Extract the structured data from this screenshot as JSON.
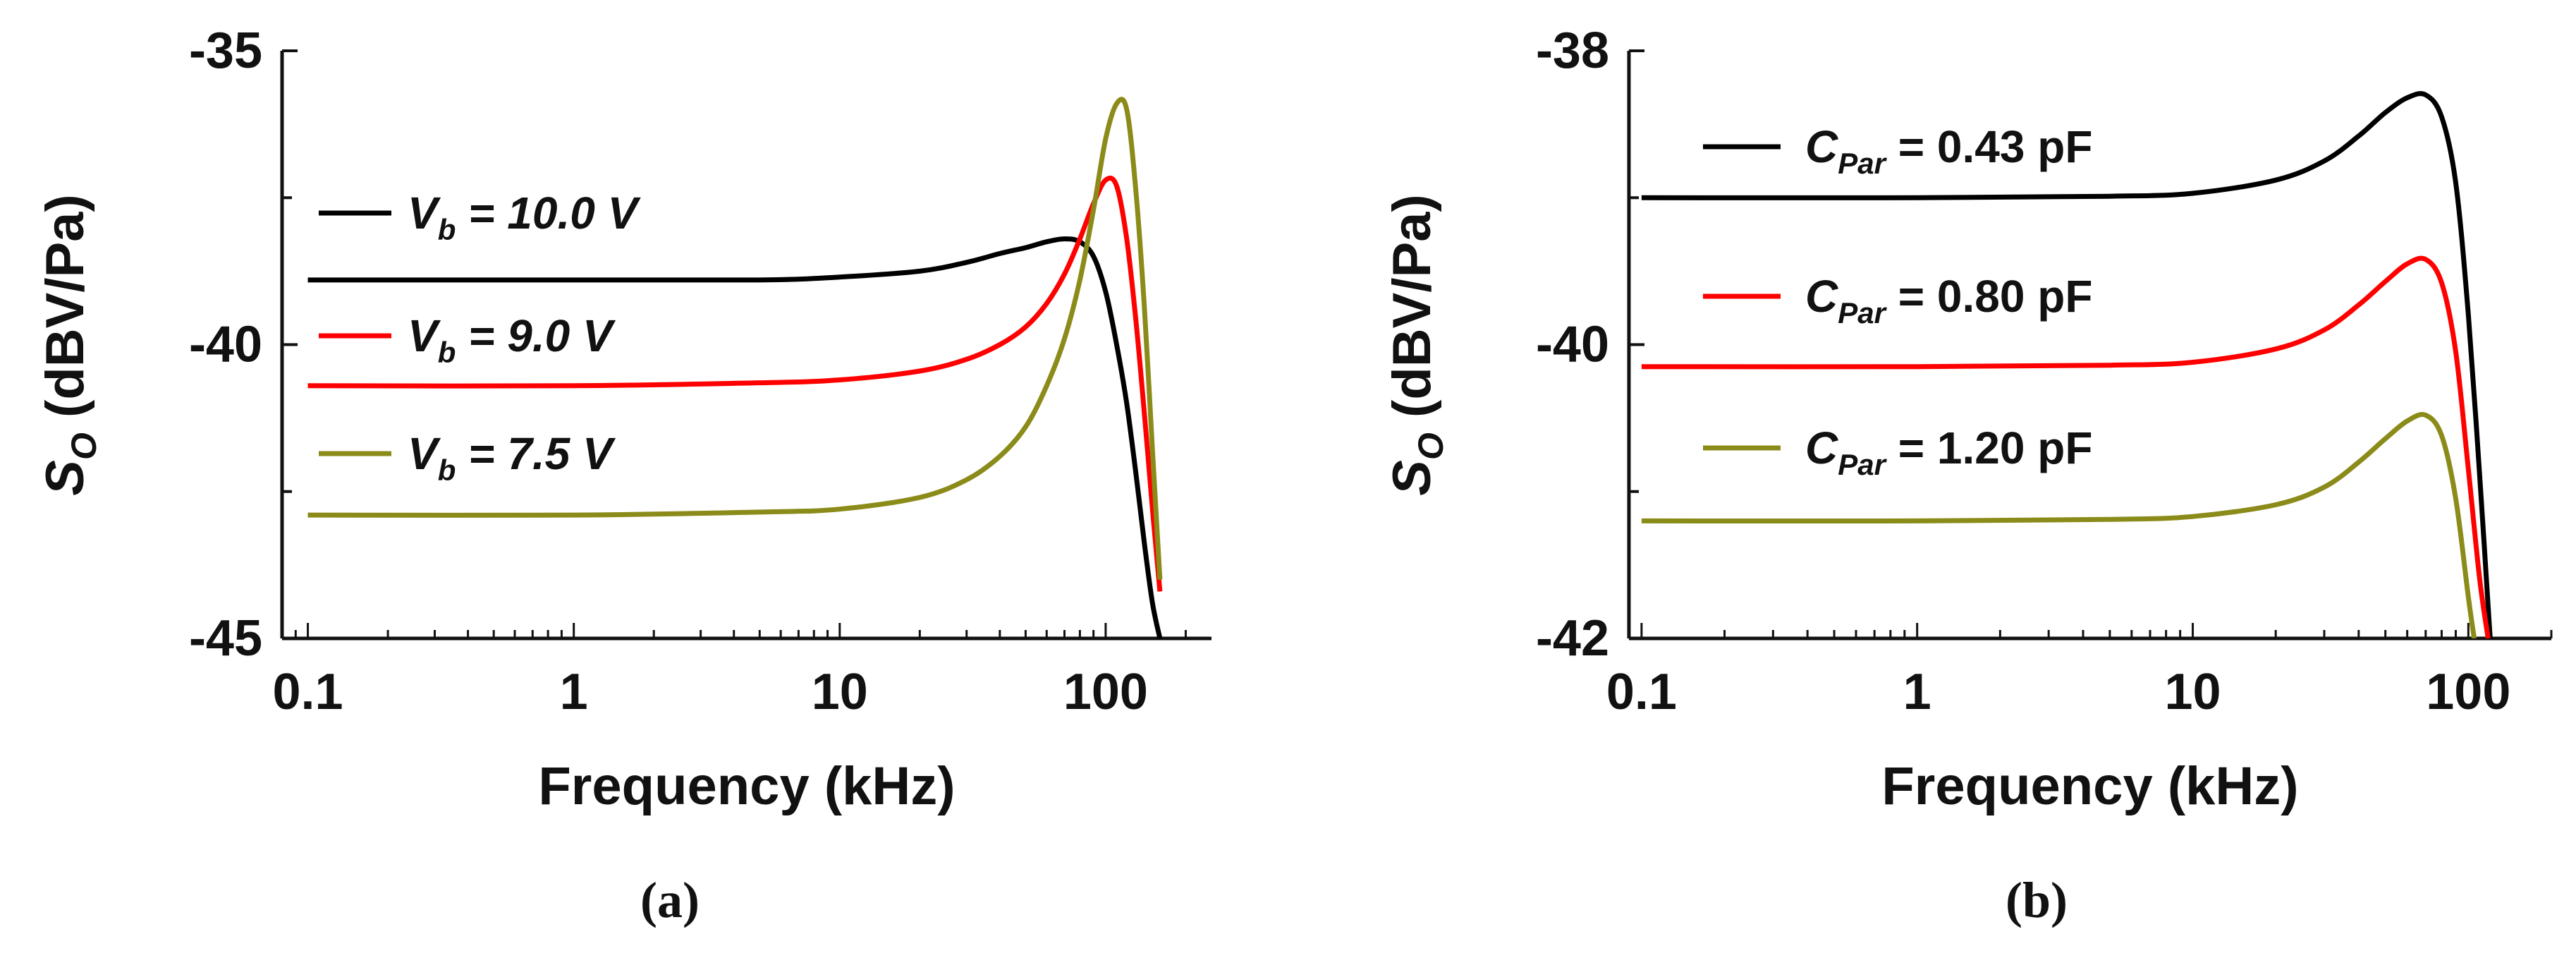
{
  "chart_data": [
    {
      "type": "line",
      "panel_label": "(a)",
      "xscale": "log",
      "xlim": [
        0.08,
        250
      ],
      "ylim": [
        -45,
        -35
      ],
      "xticks": [
        0.1,
        1,
        10,
        100
      ],
      "xtick_labels": [
        "0.1",
        "1",
        "10",
        "100"
      ],
      "yticks": [
        -35,
        -40,
        -45
      ],
      "ytick_labels": [
        "-35",
        "-40",
        "-45"
      ],
      "xlabel": "Frequency (kHz)",
      "ylabel": {
        "main": "S",
        "sub": "O",
        "rest": " (dBV/Pa)"
      },
      "series": [
        {
          "name": "V_b = 10.0 V",
          "legend": {
            "main": "V",
            "sub": "b",
            "rest": " = 10.0 V",
            "italic": true
          },
          "color": "#000000",
          "x": [
            0.1,
            1,
            5,
            10,
            20,
            30,
            40,
            50,
            60,
            70,
            80,
            90,
            100,
            110,
            120,
            130,
            140,
            150,
            160
          ],
          "y": [
            -38.9,
            -38.9,
            -38.9,
            -38.85,
            -38.75,
            -38.6,
            -38.45,
            -38.35,
            -38.25,
            -38.2,
            -38.25,
            -38.5,
            -39.1,
            -40.0,
            -41.0,
            -42.2,
            -43.4,
            -44.4,
            -45.0
          ]
        },
        {
          "name": "V_b = 9.0 V",
          "legend": {
            "main": "V",
            "sub": "b",
            "rest": " = 9.0 V",
            "italic": true
          },
          "color": "#ff0000",
          "x": [
            0.1,
            1,
            5,
            10,
            20,
            30,
            40,
            50,
            60,
            70,
            80,
            90,
            100,
            110,
            120,
            130,
            140,
            150,
            160
          ],
          "y": [
            -40.7,
            -40.7,
            -40.65,
            -40.6,
            -40.45,
            -40.25,
            -40.0,
            -39.7,
            -39.3,
            -38.8,
            -38.2,
            -37.6,
            -37.2,
            -37.3,
            -38.2,
            -39.6,
            -41.2,
            -42.8,
            -44.2
          ]
        },
        {
          "name": "V_b = 7.5 V",
          "legend": {
            "main": "V",
            "sub": "b",
            "rest": " = 7.5 V",
            "italic": true
          },
          "color": "#8b8b1a",
          "x": [
            0.1,
            1,
            5,
            10,
            20,
            30,
            40,
            50,
            60,
            70,
            80,
            90,
            100,
            110,
            120,
            130,
            140,
            150,
            160
          ],
          "y": [
            -42.9,
            -42.9,
            -42.85,
            -42.8,
            -42.6,
            -42.3,
            -41.9,
            -41.4,
            -40.7,
            -39.9,
            -38.9,
            -37.7,
            -36.5,
            -35.9,
            -36.0,
            -37.4,
            -39.4,
            -41.8,
            -44.0
          ]
        }
      ]
    },
    {
      "type": "line",
      "panel_label": "(b)",
      "xscale": "log",
      "xlim": [
        0.09,
        200
      ],
      "ylim": [
        -42,
        -38
      ],
      "xticks": [
        0.1,
        1,
        10,
        100
      ],
      "xtick_labels": [
        "0.1",
        "1",
        "10",
        "100"
      ],
      "yticks": [
        -38,
        -40,
        -42
      ],
      "ytick_labels": [
        "-38",
        "-40",
        "-42"
      ],
      "xlabel": "Frequency (kHz)",
      "ylabel": {
        "main": "S",
        "sub": "O",
        "rest": " (dBV/Pa)"
      },
      "series": [
        {
          "name": "C_Par = 0.43 pF",
          "legend": {
            "main": "C",
            "sub": "Par",
            "rest": " = 0.43 pF",
            "italic": false
          },
          "color": "#000000",
          "x": [
            0.1,
            1,
            5,
            10,
            20,
            30,
            40,
            50,
            60,
            70,
            80,
            90,
            100,
            110,
            120
          ],
          "y": [
            -39.0,
            -39.0,
            -38.99,
            -38.97,
            -38.88,
            -38.75,
            -38.58,
            -38.42,
            -38.32,
            -38.3,
            -38.45,
            -38.9,
            -39.8,
            -40.9,
            -42.0
          ]
        },
        {
          "name": "C_Par = 0.80 pF",
          "legend": {
            "main": "C",
            "sub": "Par",
            "rest": " = 0.80 pF",
            "italic": false
          },
          "color": "#ff0000",
          "x": [
            0.1,
            1,
            5,
            10,
            20,
            30,
            40,
            50,
            60,
            70,
            80,
            90,
            100,
            110,
            118
          ],
          "y": [
            -40.15,
            -40.15,
            -40.14,
            -40.12,
            -40.03,
            -39.9,
            -39.73,
            -39.57,
            -39.45,
            -39.42,
            -39.58,
            -40.05,
            -40.85,
            -41.6,
            -42.0
          ]
        },
        {
          "name": "C_Par = 1.20 pF",
          "legend": {
            "main": "C",
            "sub": "Par",
            "rest": " = 1.20 pF",
            "italic": false
          },
          "color": "#8b8b1a",
          "x": [
            0.1,
            1,
            5,
            10,
            20,
            30,
            40,
            50,
            60,
            70,
            80,
            90,
            100,
            105
          ],
          "y": [
            -41.2,
            -41.2,
            -41.19,
            -41.17,
            -41.09,
            -40.97,
            -40.8,
            -40.64,
            -40.52,
            -40.48,
            -40.62,
            -41.05,
            -41.72,
            -42.0
          ]
        }
      ]
    }
  ]
}
